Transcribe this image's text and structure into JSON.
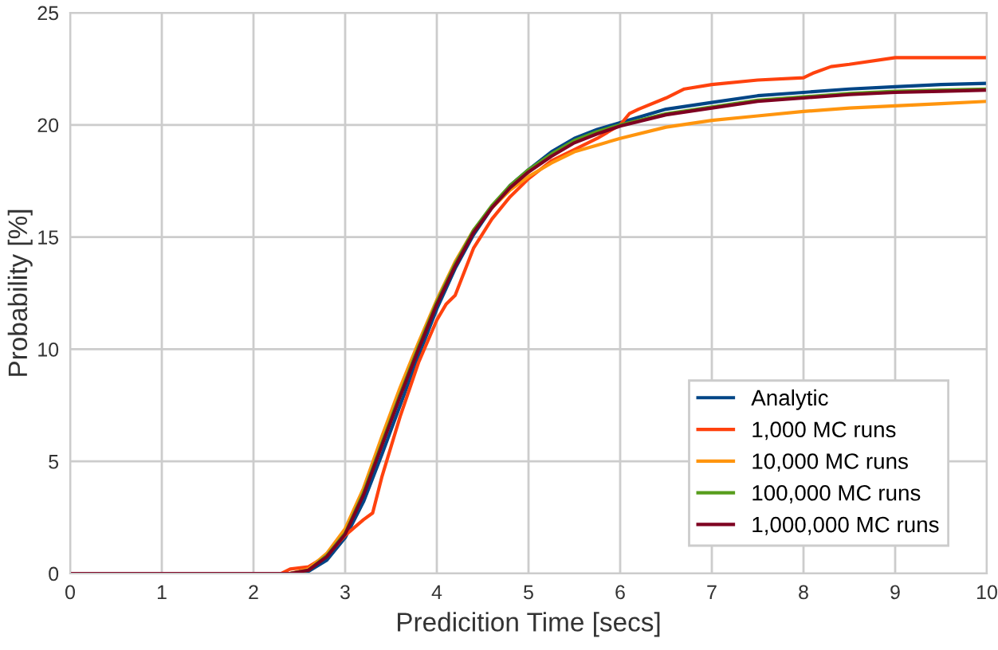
{
  "chart_data": {
    "type": "line",
    "xlabel": "Predicition Time [secs]",
    "ylabel": "Probability [%]",
    "xlim": [
      0,
      10
    ],
    "ylim": [
      0,
      25
    ],
    "xticks": [
      0,
      1,
      2,
      3,
      4,
      5,
      6,
      7,
      8,
      9,
      10
    ],
    "yticks": [
      0,
      5,
      10,
      15,
      20,
      25
    ],
    "grid": true,
    "legend": "bottom right",
    "marker": "none",
    "line_style": "solid",
    "series": [
      {
        "name": "Analytic",
        "color": "#004586",
        "x": [
          0,
          2.4,
          2.6,
          2.8,
          3.0,
          3.2,
          3.4,
          3.6,
          3.8,
          4.0,
          4.2,
          4.4,
          4.6,
          4.8,
          5.0,
          5.25,
          5.5,
          5.75,
          6,
          6.5,
          7,
          7.5,
          8,
          8.5,
          9,
          9.5,
          10
        ],
        "values": [
          0,
          0,
          0.1,
          0.6,
          1.6,
          3.2,
          5.3,
          7.5,
          9.7,
          11.8,
          13.6,
          15.1,
          16.3,
          17.3,
          18.0,
          18.8,
          19.4,
          19.8,
          20.1,
          20.7,
          21.0,
          21.3,
          21.45,
          21.6,
          21.7,
          21.8,
          21.85
        ]
      },
      {
        "name": "1,000 MC runs",
        "color": "#ff420e",
        "x": [
          0,
          2.3,
          2.4,
          2.6,
          2.8,
          3.0,
          3.2,
          3.3,
          3.4,
          3.6,
          3.8,
          4.0,
          4.1,
          4.2,
          4.4,
          4.6,
          4.8,
          5.0,
          5.25,
          5.5,
          5.75,
          6,
          6.1,
          6.2,
          6.5,
          6.7,
          7,
          7.5,
          8,
          8.1,
          8.3,
          8.5,
          9,
          9.5,
          10
        ],
        "values": [
          0,
          0,
          0.2,
          0.3,
          0.8,
          1.7,
          2.4,
          2.7,
          4.3,
          7.0,
          9.4,
          11.3,
          12.0,
          12.4,
          14.5,
          15.8,
          16.8,
          17.6,
          18.4,
          18.9,
          19.4,
          20.0,
          20.5,
          20.7,
          21.2,
          21.6,
          21.8,
          22.0,
          22.1,
          22.3,
          22.6,
          22.7,
          23.0,
          23.0,
          23.0
        ]
      },
      {
        "name": "10,000 MC runs",
        "color": "#ff950e",
        "x": [
          0,
          2.4,
          2.6,
          2.8,
          3.0,
          3.2,
          3.4,
          3.6,
          3.8,
          4.0,
          4.2,
          4.4,
          4.6,
          4.8,
          5.0,
          5.25,
          5.5,
          5.75,
          6,
          6.5,
          7,
          7.5,
          8,
          8.5,
          9,
          9.5,
          10
        ],
        "values": [
          0,
          0,
          0.2,
          0.9,
          2.0,
          3.8,
          6.1,
          8.3,
          10.3,
          12.2,
          13.9,
          15.3,
          16.3,
          17.1,
          17.7,
          18.3,
          18.8,
          19.1,
          19.4,
          19.9,
          20.2,
          20.4,
          20.6,
          20.75,
          20.85,
          20.95,
          21.05
        ]
      },
      {
        "name": "100,000 MC runs",
        "color": "#579d1c",
        "x": [
          0,
          2.4,
          2.6,
          2.8,
          3.0,
          3.2,
          3.4,
          3.6,
          3.8,
          4.0,
          4.2,
          4.4,
          4.6,
          4.8,
          5.0,
          5.25,
          5.5,
          5.75,
          6,
          6.5,
          7,
          7.5,
          8,
          8.5,
          9,
          9.5,
          10
        ],
        "values": [
          0,
          0,
          0.15,
          0.8,
          1.8,
          3.6,
          5.8,
          8.0,
          10.1,
          12.1,
          13.8,
          15.3,
          16.4,
          17.3,
          18.0,
          18.7,
          19.3,
          19.7,
          20.0,
          20.5,
          20.8,
          21.1,
          21.25,
          21.4,
          21.5,
          21.55,
          21.6
        ]
      },
      {
        "name": "1,000,000 MC runs",
        "color": "#7e0021",
        "x": [
          0,
          2.4,
          2.6,
          2.8,
          3.0,
          3.2,
          3.4,
          3.6,
          3.8,
          4.0,
          4.2,
          4.4,
          4.6,
          4.8,
          5.0,
          5.25,
          5.5,
          5.75,
          6,
          6.5,
          7,
          7.5,
          8,
          8.5,
          9,
          9.5,
          10
        ],
        "values": [
          0,
          0,
          0.15,
          0.75,
          1.75,
          3.5,
          5.7,
          7.9,
          10.0,
          12.0,
          13.7,
          15.2,
          16.3,
          17.2,
          17.9,
          18.6,
          19.2,
          19.6,
          19.95,
          20.45,
          20.75,
          21.05,
          21.2,
          21.35,
          21.45,
          21.5,
          21.55
        ]
      }
    ]
  }
}
